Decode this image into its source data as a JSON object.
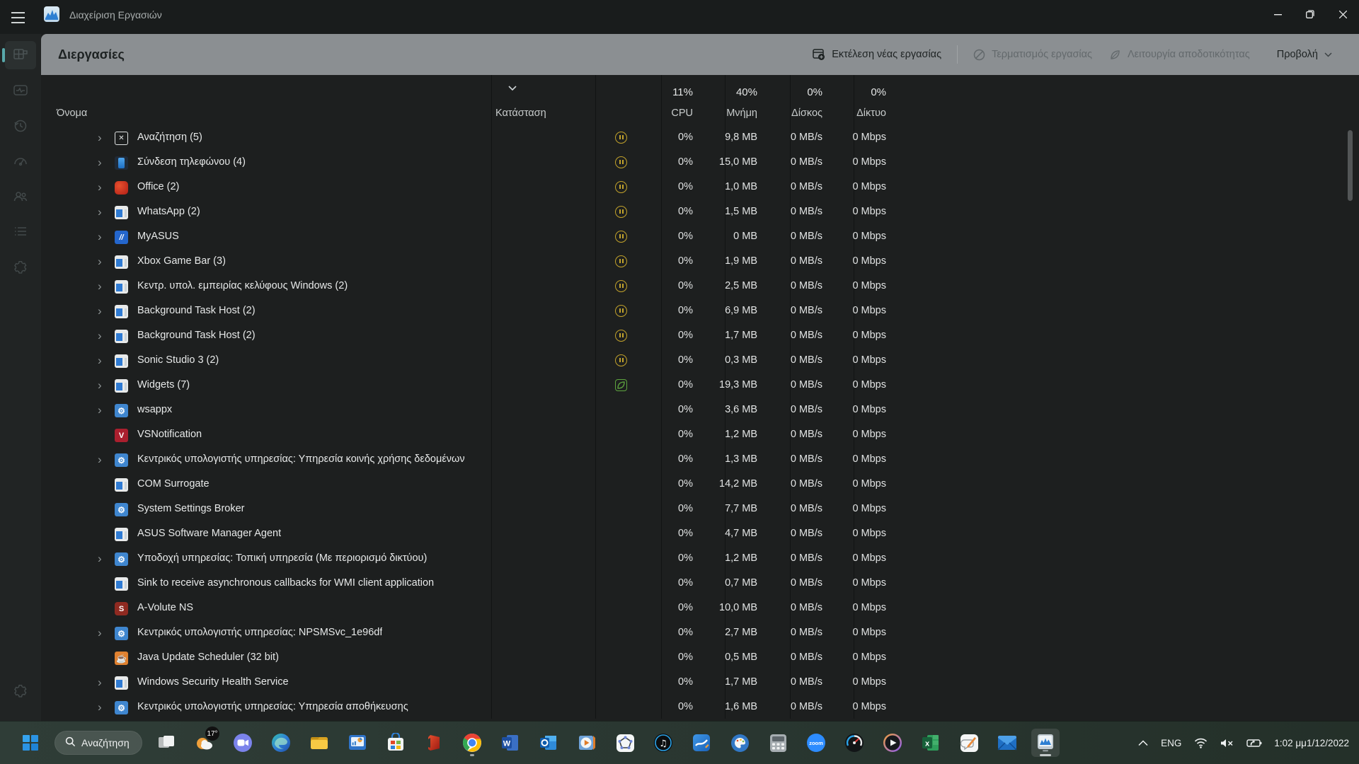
{
  "window": {
    "title": "Διαχείριση Εργασιών"
  },
  "sidebar": {
    "items": [
      {
        "id": "processes",
        "active": true
      },
      {
        "id": "performance",
        "active": false
      },
      {
        "id": "app-history",
        "active": false
      },
      {
        "id": "startup-apps",
        "active": false
      },
      {
        "id": "users",
        "active": false
      },
      {
        "id": "details",
        "active": false
      },
      {
        "id": "services",
        "active": false
      }
    ]
  },
  "toolbar": {
    "page_title": "Διεργασίες",
    "run_new_task": "Εκτέλεση νέας εργασίας",
    "end_task": "Τερματισμός εργασίας",
    "efficiency_mode": "Λειτουργία αποδοτικότητας",
    "view": "Προβολή"
  },
  "table": {
    "columns": {
      "name": "Όνομα",
      "status": "Κατάσταση",
      "cpu": "CPU",
      "memory": "Μνήμη",
      "disk": "Δίσκος",
      "network": "Δίκτυο"
    },
    "totals": {
      "cpu": "11%",
      "memory": "40%",
      "disk": "0%",
      "network": "0%"
    },
    "rows": [
      {
        "name": "Αναζήτηση (5)",
        "icon": "search",
        "chevron": true,
        "status": "paused",
        "cpu": "0%",
        "memory": "9,8 MB",
        "disk": "0 MB/s",
        "network": "0 Mbps"
      },
      {
        "name": "Σύνδεση τηλεφώνου (4)",
        "icon": "phone",
        "chevron": true,
        "status": "paused",
        "cpu": "0%",
        "memory": "15,0 MB",
        "disk": "0 MB/s",
        "network": "0 Mbps"
      },
      {
        "name": "Office (2)",
        "icon": "office",
        "chevron": true,
        "status": "paused",
        "cpu": "0%",
        "memory": "1,0 MB",
        "disk": "0 MB/s",
        "network": "0 Mbps"
      },
      {
        "name": "WhatsApp (2)",
        "icon": "window",
        "chevron": true,
        "status": "paused",
        "cpu": "0%",
        "memory": "1,5 MB",
        "disk": "0 MB/s",
        "network": "0 Mbps"
      },
      {
        "name": "MyASUS",
        "icon": "myasus",
        "chevron": true,
        "status": "paused",
        "cpu": "0%",
        "memory": "0 MB",
        "disk": "0 MB/s",
        "network": "0 Mbps"
      },
      {
        "name": "Xbox Game Bar (3)",
        "icon": "window",
        "chevron": true,
        "status": "paused",
        "cpu": "0%",
        "memory": "1,9 MB",
        "disk": "0 MB/s",
        "network": "0 Mbps"
      },
      {
        "name": "Κεντρ. υπολ. εμπειρίας κελύφους Windows (2)",
        "icon": "window",
        "chevron": true,
        "status": "paused",
        "cpu": "0%",
        "memory": "2,5 MB",
        "disk": "0 MB/s",
        "network": "0 Mbps"
      },
      {
        "name": "Background Task Host (2)",
        "icon": "window",
        "chevron": true,
        "status": "paused",
        "cpu": "0%",
        "memory": "6,9 MB",
        "disk": "0 MB/s",
        "network": "0 Mbps"
      },
      {
        "name": "Background Task Host (2)",
        "icon": "window",
        "chevron": true,
        "status": "paused",
        "cpu": "0%",
        "memory": "1,7 MB",
        "disk": "0 MB/s",
        "network": "0 Mbps"
      },
      {
        "name": "Sonic Studio 3 (2)",
        "icon": "window",
        "chevron": true,
        "status": "paused",
        "cpu": "0%",
        "memory": "0,3 MB",
        "disk": "0 MB/s",
        "network": "0 Mbps"
      },
      {
        "name": "Widgets (7)",
        "icon": "window",
        "chevron": true,
        "status": "leaf",
        "cpu": "0%",
        "memory": "19,3 MB",
        "disk": "0 MB/s",
        "network": "0 Mbps"
      },
      {
        "name": "wsappx",
        "icon": "gear",
        "chevron": true,
        "status": "",
        "cpu": "0%",
        "memory": "3,6 MB",
        "disk": "0 MB/s",
        "network": "0 Mbps"
      },
      {
        "name": "VSNotification",
        "icon": "vs",
        "chevron": false,
        "status": "",
        "cpu": "0%",
        "memory": "1,2 MB",
        "disk": "0 MB/s",
        "network": "0 Mbps"
      },
      {
        "name": "Κεντρικός υπολογιστής υπηρεσίας: Υπηρεσία κοινής χρήσης δεδομένων",
        "icon": "gear",
        "chevron": true,
        "status": "",
        "cpu": "0%",
        "memory": "1,3 MB",
        "disk": "0 MB/s",
        "network": "0 Mbps"
      },
      {
        "name": "COM Surrogate",
        "icon": "window",
        "chevron": false,
        "status": "",
        "cpu": "0%",
        "memory": "14,2 MB",
        "disk": "0 MB/s",
        "network": "0 Mbps"
      },
      {
        "name": "System Settings Broker",
        "icon": "gear",
        "chevron": false,
        "status": "",
        "cpu": "0%",
        "memory": "7,7 MB",
        "disk": "0 MB/s",
        "network": "0 Mbps"
      },
      {
        "name": "ASUS Software Manager Agent",
        "icon": "window",
        "chevron": false,
        "status": "",
        "cpu": "0%",
        "memory": "4,7 MB",
        "disk": "0 MB/s",
        "network": "0 Mbps"
      },
      {
        "name": "Υποδοχή υπηρεσίας: Τοπική υπηρεσία (Με περιορισμό δικτύου)",
        "icon": "gear",
        "chevron": true,
        "status": "",
        "cpu": "0%",
        "memory": "1,2 MB",
        "disk": "0 MB/s",
        "network": "0 Mbps"
      },
      {
        "name": "Sink to receive asynchronous callbacks for WMI client application",
        "icon": "window",
        "chevron": false,
        "status": "",
        "cpu": "0%",
        "memory": "0,7 MB",
        "disk": "0 MB/s",
        "network": "0 Mbps"
      },
      {
        "name": "A-Volute NS",
        "icon": "avolute",
        "chevron": false,
        "status": "",
        "cpu": "0%",
        "memory": "10,0 MB",
        "disk": "0 MB/s",
        "network": "0 Mbps"
      },
      {
        "name": "Κεντρικός υπολογιστής υπηρεσίας: NPSMSvc_1e96df",
        "icon": "gear",
        "chevron": true,
        "status": "",
        "cpu": "0%",
        "memory": "2,7 MB",
        "disk": "0 MB/s",
        "network": "0 Mbps"
      },
      {
        "name": "Java Update Scheduler (32 bit)",
        "icon": "java",
        "chevron": false,
        "status": "",
        "cpu": "0%",
        "memory": "0,5 MB",
        "disk": "0 MB/s",
        "network": "0 Mbps"
      },
      {
        "name": "Windows Security Health Service",
        "icon": "window",
        "chevron": true,
        "status": "",
        "cpu": "0%",
        "memory": "1,7 MB",
        "disk": "0 MB/s",
        "network": "0 Mbps"
      },
      {
        "name": "Κεντρικός υπολογιστής υπηρεσίας: Υπηρεσία αποθήκευσης",
        "icon": "gear",
        "chevron": true,
        "status": "",
        "cpu": "0%",
        "memory": "1,6 MB",
        "disk": "0 MB/s",
        "network": "0 Mbps"
      }
    ]
  },
  "taskbar": {
    "search_label": "Αναζήτηση",
    "weather_badge": "17°",
    "zoom_label": "zoom",
    "icons": [
      "task-view",
      "weather",
      "chat",
      "edge",
      "file-explorer",
      "computer-mgmt",
      "store",
      "office",
      "chrome",
      "word",
      "outlook",
      "media-player",
      "geogebra",
      "audio-app",
      "whiteboard",
      "paint",
      "calculator",
      "zoom",
      "gauge-app",
      "movies-tv",
      "excel",
      "journal",
      "mail",
      "task-manager"
    ],
    "open_apps": [
      "chrome",
      "task-manager"
    ],
    "active_app": "task-manager"
  },
  "tray": {
    "language": "ENG",
    "time": "1:02 μμ",
    "date": "1/12/2022"
  },
  "colors": {
    "accent": "#58a8aa",
    "paused": "#c3a32b",
    "leaf": "#5ea53f",
    "toolbar_gray": "#8b8f92"
  }
}
